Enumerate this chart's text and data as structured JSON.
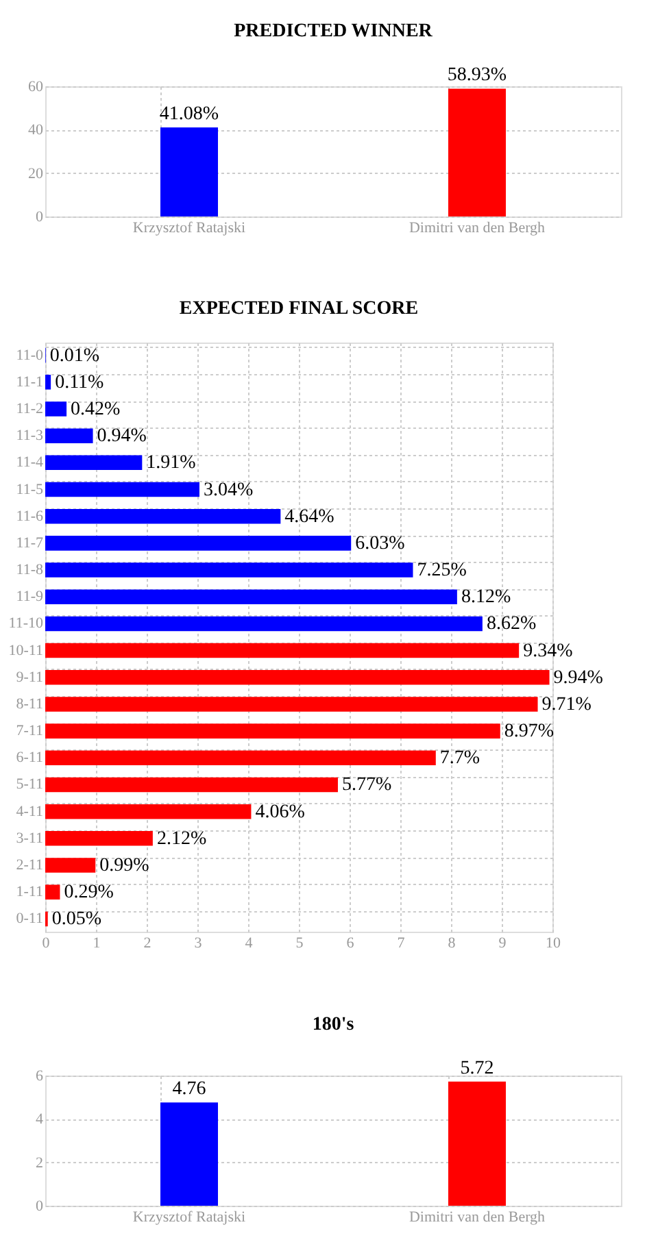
{
  "chart_data": [
    {
      "type": "bar",
      "title": "PREDICTED WINNER",
      "categories": [
        "Krzysztof Ratajski",
        "Dimitri van den Bergh"
      ],
      "values": [
        41.08,
        58.93
      ],
      "colors": [
        "#0000ff",
        "#ff0000"
      ],
      "value_labels": [
        "41.08%",
        "58.93%"
      ],
      "ylim": [
        0,
        60
      ],
      "yticks": [
        0,
        20,
        40,
        60
      ],
      "grid": true,
      "legend": false
    },
    {
      "type": "bar",
      "orientation": "horizontal",
      "title": "EXPECTED FINAL SCORE",
      "categories": [
        "11-0",
        "11-1",
        "11-2",
        "11-3",
        "11-4",
        "11-5",
        "11-6",
        "11-7",
        "11-8",
        "11-9",
        "11-10",
        "10-11",
        "9-11",
        "8-11",
        "7-11",
        "6-11",
        "5-11",
        "4-11",
        "3-11",
        "2-11",
        "1-11",
        "0-11"
      ],
      "values": [
        0.01,
        0.11,
        0.42,
        0.94,
        1.91,
        3.04,
        4.64,
        6.03,
        7.25,
        8.12,
        8.62,
        9.34,
        9.94,
        9.71,
        8.97,
        7.7,
        5.77,
        4.06,
        2.12,
        0.99,
        0.29,
        0.05
      ],
      "colors": [
        "#0000ff",
        "#0000ff",
        "#0000ff",
        "#0000ff",
        "#0000ff",
        "#0000ff",
        "#0000ff",
        "#0000ff",
        "#0000ff",
        "#0000ff",
        "#0000ff",
        "#ff0000",
        "#ff0000",
        "#ff0000",
        "#ff0000",
        "#ff0000",
        "#ff0000",
        "#ff0000",
        "#ff0000",
        "#ff0000",
        "#ff0000",
        "#ff0000"
      ],
      "value_labels": [
        "0.01%",
        "0.11%",
        "0.42%",
        "0.94%",
        "1.91%",
        "3.04%",
        "4.64%",
        "6.03%",
        "7.25%",
        "8.12%",
        "8.62%",
        "9.34%",
        "9.94%",
        "9.71%",
        "8.97%",
        "7.7%",
        "5.77%",
        "4.06%",
        "2.12%",
        "0.99%",
        "0.29%",
        "0.05%"
      ],
      "xlim": [
        0,
        10
      ],
      "xticks": [
        0,
        1,
        2,
        3,
        4,
        5,
        6,
        7,
        8,
        9,
        10
      ],
      "grid": true,
      "legend": false
    },
    {
      "type": "bar",
      "title": "180's",
      "categories": [
        "Krzysztof Ratajski",
        "Dimitri van den Bergh"
      ],
      "values": [
        4.76,
        5.72
      ],
      "colors": [
        "#0000ff",
        "#ff0000"
      ],
      "data_labels": true,
      "ylim": [
        0,
        6
      ],
      "yticks": [
        0,
        2,
        4,
        6
      ],
      "grid": true,
      "legend": false
    }
  ]
}
